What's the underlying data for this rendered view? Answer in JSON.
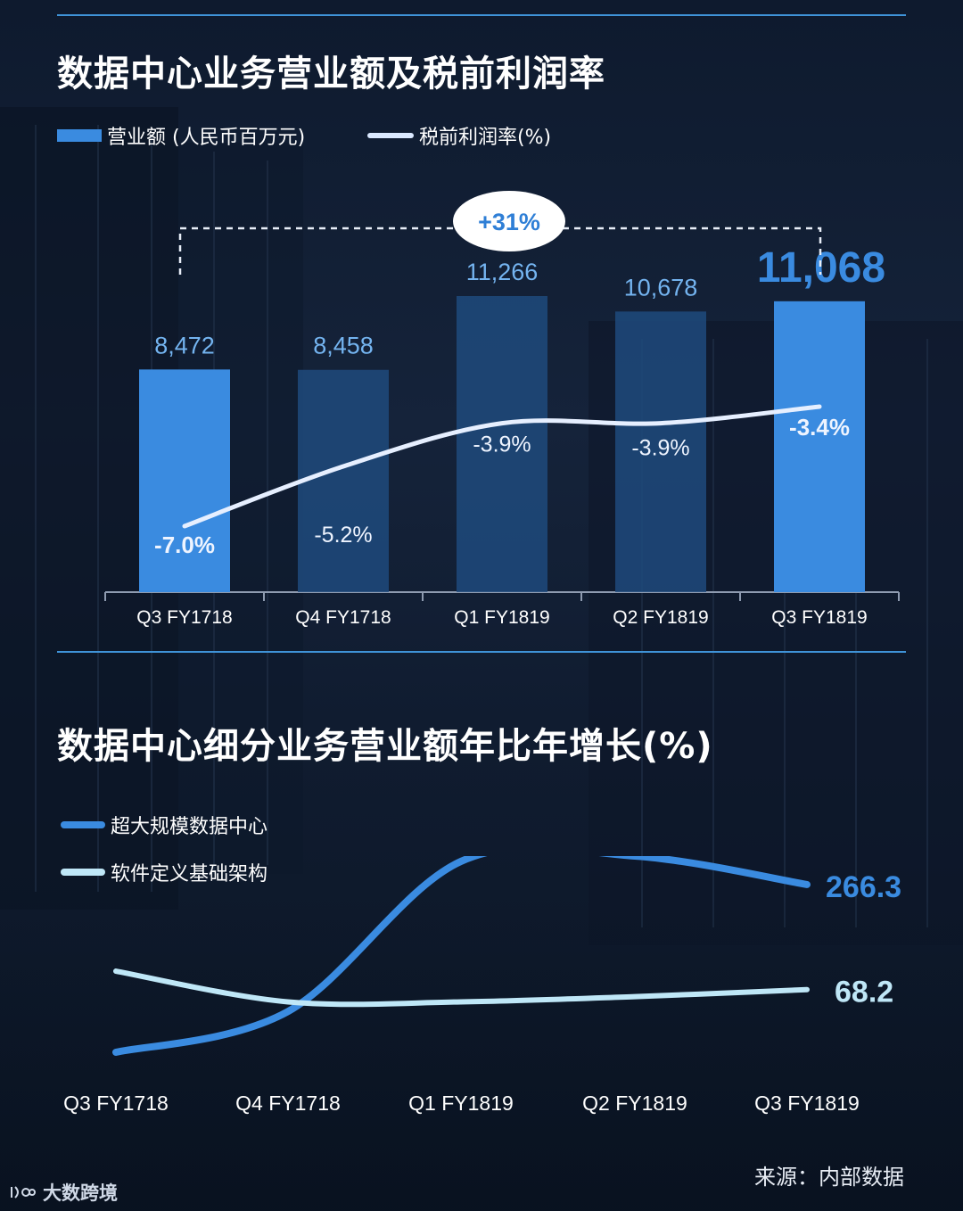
{
  "chart_data": [
    {
      "type": "bar",
      "title": "数据中心业务营业额及税前利润率",
      "categories": [
        "Q3 FY1718",
        "Q4 FY1718",
        "Q1 FY1819",
        "Q2 FY1819",
        "Q3 FY1819"
      ],
      "series": [
        {
          "name": "营业额 (人民币百万元)",
          "type": "bar",
          "values": [
            8472,
            8458,
            11266,
            10678,
            11068
          ],
          "labels": [
            "8,472",
            "8,458",
            "11,266",
            "10,678",
            "11,068"
          ]
        },
        {
          "name": "税前利润率(%)",
          "type": "line",
          "values": [
            -7.0,
            -5.2,
            -3.9,
            -3.9,
            -3.4
          ],
          "labels": [
            "-7.0%",
            "-5.2%",
            "-3.9%",
            "-3.9%",
            "-3.4%"
          ]
        }
      ],
      "annotation": "+31%",
      "highlight_index": 4
    },
    {
      "type": "line",
      "title": "数据中心细分业务营业额年比年增长(%)",
      "categories": [
        "Q3 FY1718",
        "Q4 FY1718",
        "Q1 FY1819",
        "Q2 FY1819",
        "Q3 FY1819"
      ],
      "series": [
        {
          "name": "超大规模数据中心",
          "values": [
            -50,
            27,
            310,
            320,
            266.3
          ],
          "end_label": "266.3"
        },
        {
          "name": "软件定义基础架构",
          "values": [
            103,
            45,
            45,
            55,
            68.2
          ],
          "end_label": "68.2"
        }
      ]
    }
  ],
  "colors": {
    "accent_blue": "#3a8be0",
    "dim_bar": "#1f4a7d",
    "margin_line": "#e6efff",
    "light_cyan": "#bfe7f7",
    "label_blue": "#74b4f0"
  },
  "footer": {
    "source": "来源：内部数据",
    "brand": "大数跨境"
  }
}
